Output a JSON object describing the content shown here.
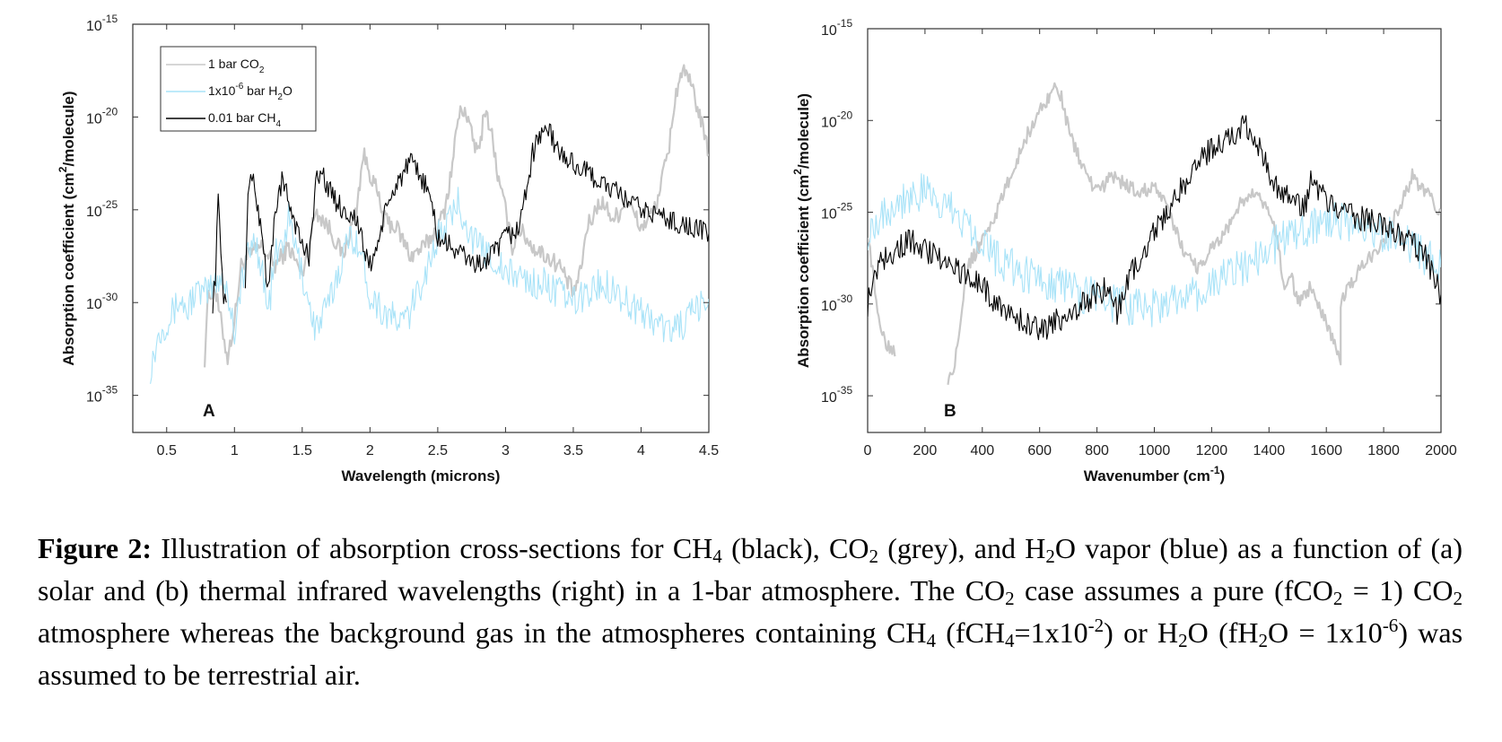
{
  "chart_data": [
    {
      "type": "line",
      "panel_label": "A",
      "xlabel": "Wavelength (microns)",
      "ylabel": "Absorption coefficient (cm2/molecule)",
      "ylabel_parts": {
        "pre": "Absorption coefficient (cm",
        "sup": "2",
        "post": "/molecule)"
      },
      "xlim": [
        0.25,
        4.5
      ],
      "ylim": [
        -37,
        -15
      ],
      "yscale": "log",
      "x_ticks": [
        0.5,
        1,
        1.5,
        2,
        2.5,
        3,
        3.5,
        4,
        4.5
      ],
      "x_tick_labels": [
        "0.5",
        "1",
        "1.5",
        "2",
        "2.5",
        "3",
        "3.5",
        "4",
        "4.5"
      ],
      "y_ticks": [
        -15,
        -20,
        -25,
        -30,
        -35
      ],
      "y_tick_labels": [
        {
          "base": "10",
          "exp": "-15"
        },
        {
          "base": "10",
          "exp": "-20"
        },
        {
          "base": "10",
          "exp": "-25"
        },
        {
          "base": "10",
          "exp": "-30"
        },
        {
          "base": "10",
          "exp": "-35"
        }
      ],
      "legend_position": "top-left",
      "legend": [
        {
          "series": "co2",
          "parts": {
            "pre": "1 bar CO",
            "sub": "2",
            "post": ""
          }
        },
        {
          "series": "h2o",
          "parts": {
            "pre": "1x10",
            "sup": "-6",
            "mid": " bar H",
            "sub": "2",
            "post": "O"
          }
        },
        {
          "series": "ch4",
          "parts": {
            "pre": "0.01 bar CH",
            "sub": "4",
            "post": ""
          }
        }
      ],
      "series": [
        {
          "id": "co2",
          "name": "1 bar CO2",
          "color": "#c8c8c8",
          "noise": 0.5,
          "x": [
            0.78,
            0.8,
            0.85,
            0.9,
            0.95,
            1.0,
            1.05,
            1.1,
            1.2,
            1.3,
            1.4,
            1.5,
            1.6,
            1.7,
            1.8,
            1.9,
            1.95,
            2.0,
            2.05,
            2.1,
            2.2,
            2.3,
            2.4,
            2.5,
            2.55,
            2.6,
            2.65,
            2.7,
            2.75,
            2.8,
            2.85,
            2.9,
            2.95,
            3.0,
            3.05,
            3.1,
            3.2,
            3.3,
            3.4,
            3.5,
            3.55,
            3.6,
            3.7,
            3.8,
            3.9,
            4.0,
            4.1,
            4.2,
            4.25,
            4.3,
            4.35,
            4.4,
            4.5
          ],
          "y": [
            -33,
            -30,
            -29,
            -31,
            -33,
            -31,
            -28,
            -27.5,
            -27,
            -28,
            -27,
            -28.5,
            -25,
            -26,
            -27.5,
            -25,
            -22,
            -23,
            -24,
            -25.5,
            -26,
            -27.5,
            -27,
            -26,
            -25,
            -23,
            -20,
            -19.5,
            -21,
            -22,
            -19.5,
            -21,
            -23.5,
            -25,
            -27,
            -26,
            -27,
            -27.5,
            -28,
            -29.5,
            -28.5,
            -26,
            -24.5,
            -25.5,
            -24.5,
            -26,
            -25,
            -22,
            -19,
            -17.5,
            -18,
            -19,
            -22
          ]
        },
        {
          "id": "h2o",
          "name": "1x10-6 bar H2O",
          "color": "#a9e3f8",
          "noise": 0.9,
          "x": [
            0.38,
            0.45,
            0.5,
            0.55,
            0.6,
            0.65,
            0.7,
            0.8,
            0.9,
            0.95,
            1.0,
            1.05,
            1.1,
            1.15,
            1.2,
            1.25,
            1.3,
            1.35,
            1.4,
            1.45,
            1.5,
            1.6,
            1.7,
            1.8,
            1.85,
            1.9,
            1.95,
            2.0,
            2.1,
            2.2,
            2.25,
            2.3,
            2.4,
            2.5,
            2.6,
            2.65,
            2.7,
            2.75,
            2.8,
            2.9,
            3.0,
            3.1,
            3.2,
            3.3,
            3.4,
            3.5,
            3.6,
            3.7,
            3.8,
            3.9,
            4.0,
            4.1,
            4.2,
            4.3,
            4.4,
            4.5
          ],
          "y": [
            -33.5,
            -31.5,
            -31,
            -30.5,
            -29.8,
            -30.5,
            -29.5,
            -29.5,
            -28.5,
            -29.5,
            -31.5,
            -29,
            -27.5,
            -26.5,
            -28,
            -30.5,
            -27.5,
            -27,
            -25.5,
            -27,
            -28.5,
            -31.5,
            -30,
            -27.5,
            -26.5,
            -26.5,
            -28,
            -29.5,
            -30.5,
            -31,
            -31,
            -30.5,
            -28.5,
            -26.5,
            -25.5,
            -24.5,
            -25.5,
            -26.5,
            -27,
            -27.5,
            -28.5,
            -28.5,
            -29,
            -29,
            -29.5,
            -30,
            -29.5,
            -29,
            -29.2,
            -30,
            -30.5,
            -31,
            -31.5,
            -31.2,
            -30.5,
            -29.8
          ]
        },
        {
          "id": "ch4",
          "name": "0.01 bar CH4",
          "color": "#000000",
          "noise": 0.6,
          "x": [
            0.84,
            0.86,
            0.88,
            0.9,
            0.92,
            0.95,
            null,
            1.08,
            1.1,
            1.12,
            1.15,
            1.2,
            1.25,
            1.3,
            1.35,
            1.4,
            1.5,
            1.55,
            1.6,
            1.65,
            1.7,
            1.8,
            1.9,
            1.95,
            2.0,
            2.05,
            2.1,
            2.2,
            2.3,
            2.4,
            2.45,
            2.5,
            2.6,
            2.7,
            2.8,
            2.9,
            2.95,
            3.0,
            3.1,
            3.15,
            3.2,
            3.25,
            3.3,
            3.4,
            3.5,
            3.6,
            3.7,
            3.8,
            3.9,
            4.0,
            4.1,
            4.2,
            4.3,
            4.4,
            4.5
          ],
          "y": [
            -30,
            -28.5,
            -24.5,
            -27,
            -29.5,
            -30.5,
            null,
            -29.5,
            -24,
            -23,
            -24,
            -26,
            -29.5,
            -25,
            -23.5,
            -24.5,
            -27,
            -27.5,
            -23.5,
            -23,
            -24,
            -25,
            -25.5,
            -27,
            -28,
            -27,
            -25.5,
            -23.5,
            -22.5,
            -23.5,
            -24.5,
            -26.5,
            -27,
            -27.5,
            -28,
            -27.5,
            -27,
            -26.5,
            -26,
            -24,
            -22,
            -21,
            -20.5,
            -22,
            -22.5,
            -23,
            -23.5,
            -24,
            -24.5,
            -25,
            -25.2,
            -25.5,
            -25.8,
            -26,
            -26.3
          ]
        }
      ]
    },
    {
      "type": "line",
      "panel_label": "B",
      "xlabel": "Wavenumber (cm-1)",
      "xlabel_parts": {
        "pre": "Wavenumber (cm",
        "sup": "-1",
        "post": ")"
      },
      "ylabel": "Absorption coefficient (cm2/molecule)",
      "ylabel_parts": {
        "pre": "Absorption coefficient (cm",
        "sup": "2",
        "post": "/molecule)"
      },
      "xlim": [
        0,
        2000
      ],
      "ylim": [
        -37,
        -15
      ],
      "yscale": "log",
      "x_ticks": [
        0,
        200,
        400,
        600,
        800,
        1000,
        1200,
        1400,
        1600,
        1800,
        2000
      ],
      "x_tick_labels": [
        "0",
        "200",
        "400",
        "600",
        "800",
        "1000",
        "1200",
        "1400",
        "1600",
        "1800",
        "2000"
      ],
      "y_ticks": [
        -15,
        -20,
        -25,
        -30,
        -35
      ],
      "y_tick_labels": [
        {
          "base": "10",
          "exp": "-15"
        },
        {
          "base": "10",
          "exp": "-20"
        },
        {
          "base": "10",
          "exp": "-25"
        },
        {
          "base": "10",
          "exp": "-30"
        },
        {
          "base": "10",
          "exp": "-35"
        }
      ],
      "series": [
        {
          "id": "co2",
          "name": "1 bar CO2",
          "color": "#c8c8c8",
          "noise": 0.4,
          "x": [
            0,
            30,
            60,
            90,
            100,
            null,
            280,
            300,
            330,
            350,
            400,
            450,
            500,
            550,
            600,
            640,
            660,
            680,
            700,
            750,
            800,
            850,
            900,
            950,
            1000,
            1050,
            1100,
            1150,
            1200,
            1250,
            1300,
            1350,
            1400,
            1430,
            1450,
            1480,
            1500,
            1550,
            1600,
            1650,
            1650,
            1700,
            1750,
            1800,
            1850,
            1900,
            1950,
            2000
          ],
          "y": [
            -26,
            -30,
            -32,
            -32.5,
            -32.5,
            null,
            -34,
            -33.5,
            -30,
            -28,
            -26.5,
            -25,
            -23,
            -21,
            -19.5,
            -18.5,
            -18,
            -19,
            -20.5,
            -22.5,
            -24,
            -23,
            -23.5,
            -24,
            -23.5,
            -25,
            -27,
            -28,
            -27,
            -26,
            -24.5,
            -24,
            -25,
            -26.5,
            -29,
            -28.5,
            -30,
            -29,
            -31,
            -33,
            -30,
            -28.5,
            -27.5,
            -26.5,
            -25,
            -23,
            -24,
            -25
          ]
        },
        {
          "id": "h2o",
          "name": "1x10-6 bar H2O",
          "color": "#a9e3f8",
          "noise": 1.1,
          "x": [
            0,
            50,
            100,
            150,
            200,
            250,
            300,
            350,
            400,
            450,
            500,
            550,
            600,
            650,
            700,
            750,
            800,
            850,
            900,
            950,
            1000,
            1050,
            1100,
            1150,
            1200,
            1250,
            1300,
            1350,
            1400,
            1450,
            1500,
            1550,
            1600,
            1650,
            1700,
            1750,
            1800,
            1850,
            1900,
            1950,
            2000
          ],
          "y": [
            -26,
            -25,
            -24.5,
            -24,
            -24,
            -24.5,
            -25,
            -25.5,
            -26.5,
            -27.5,
            -28,
            -28.5,
            -28.5,
            -28.8,
            -29,
            -29.5,
            -29.5,
            -30,
            -30,
            -30.2,
            -30.2,
            -30,
            -29.8,
            -29.5,
            -29,
            -28.5,
            -28,
            -27.5,
            -27,
            -26.5,
            -26,
            -25.8,
            -25.5,
            -25.5,
            -25.8,
            -26,
            -26.2,
            -26.5,
            -27,
            -27.5,
            -28
          ]
        },
        {
          "id": "ch4",
          "name": "0.01 bar CH4",
          "color": "#000000",
          "noise": 0.7,
          "x": [
            0,
            20,
            50,
            100,
            150,
            200,
            250,
            300,
            350,
            400,
            450,
            500,
            550,
            600,
            650,
            700,
            750,
            800,
            850,
            870,
            900,
            950,
            1000,
            1050,
            1100,
            1150,
            1200,
            1250,
            1300,
            1320,
            1350,
            1380,
            1400,
            1450,
            1500,
            1530,
            1550,
            1580,
            1600,
            1650,
            1700,
            1750,
            1800,
            1850,
            1900,
            1950,
            2000
          ],
          "y": [
            -30,
            -28.5,
            -27.5,
            -27,
            -26.5,
            -27,
            -27.5,
            -28,
            -28.5,
            -29,
            -30,
            -30.5,
            -31,
            -31.5,
            -31,
            -30.5,
            -30,
            -29.5,
            -29,
            -30.5,
            -29,
            -27.5,
            -26,
            -25,
            -23.5,
            -22.5,
            -21.5,
            -21,
            -20.5,
            -20.3,
            -20.8,
            -22,
            -23,
            -24,
            -24.5,
            -24.8,
            -23,
            -24,
            -24.5,
            -25,
            -25.2,
            -25.5,
            -25.8,
            -26.2,
            -26.7,
            -27.5,
            -29.5
          ]
        }
      ]
    }
  ],
  "caption": {
    "label": "Figure 2:",
    "segments": [
      {
        "t": "text",
        "v": " Illustration of absorption cross-sections for CH"
      },
      {
        "t": "sub",
        "v": "4"
      },
      {
        "t": "text",
        "v": " (black), CO"
      },
      {
        "t": "sub",
        "v": "2"
      },
      {
        "t": "text",
        "v": " (grey), and H"
      },
      {
        "t": "sub",
        "v": "2"
      },
      {
        "t": "text",
        "v": "O vapor (blue) as a function of (a) solar and (b) thermal infrared wavelengths (right) in a 1-bar atmosphere. The CO"
      },
      {
        "t": "sub",
        "v": "2"
      },
      {
        "t": "text",
        "v": " case assumes a pure (fCO"
      },
      {
        "t": "sub",
        "v": "2"
      },
      {
        "t": "text",
        "v": " = 1) CO"
      },
      {
        "t": "sub",
        "v": "2"
      },
      {
        "t": "text",
        "v": " atmosphere whereas the background gas in the atmospheres containing CH"
      },
      {
        "t": "sub",
        "v": "4"
      },
      {
        "t": "text",
        "v": " (fCH"
      },
      {
        "t": "sub",
        "v": "4"
      },
      {
        "t": "text",
        "v": "=1x10"
      },
      {
        "t": "sup",
        "v": "-2"
      },
      {
        "t": "text",
        "v": ") or H"
      },
      {
        "t": "sub",
        "v": "2"
      },
      {
        "t": "text",
        "v": "O (fH"
      },
      {
        "t": "sub",
        "v": "2"
      },
      {
        "t": "text",
        "v": "O = 1x10"
      },
      {
        "t": "sup",
        "v": "-6"
      },
      {
        "t": "text",
        "v": ") was assumed to be terrestrial air."
      }
    ]
  }
}
